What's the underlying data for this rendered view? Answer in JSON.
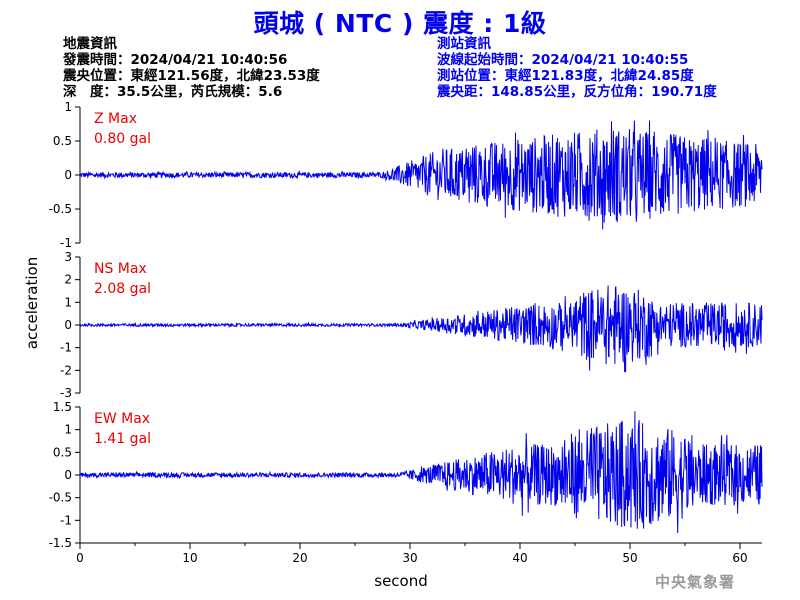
{
  "title": "頭城 ( NTC ) 震度 : 1級",
  "earthquake_info": {
    "header": "地震資訊",
    "origin_time": "發震時間：2024/04/21 10:40:56",
    "epicenter": "震央位置：東經121.56度，北緯23.53度",
    "depth_magnitude": "深　度：35.5公里，芮氏規模：5.6"
  },
  "station_info": {
    "header": "測站資訊",
    "wave_start": "波線起始時間：2024/04/21 10:40:55",
    "station_location": "測站位置：東經121.83度，北緯24.85度",
    "distance_azimuth": "震央距：148.85公里，反方位角：190.71度"
  },
  "agency": "中央氣象署",
  "colors": {
    "trace": "#0000ee",
    "max_label": "#ee0000",
    "title": "#0000ee"
  },
  "chart_data": {
    "type": "line",
    "xlabel": "second",
    "ylabel": "acceleration",
    "xlim": [
      0,
      62
    ],
    "xticks": [
      0,
      10,
      20,
      30,
      40,
      50,
      60
    ],
    "grid": false,
    "series": [
      {
        "name": "Z Max",
        "max_label": "0.80 gal",
        "ylim": [
          -1,
          1
        ],
        "yticks": [
          -1,
          -0.5,
          0,
          0.5,
          1
        ],
        "peak": 0.8,
        "noise": 0.04,
        "onset_s": 27.5,
        "ramp_end_s": 33,
        "strong_s": [
          35,
          62
        ]
      },
      {
        "name": "NS Max",
        "max_label": "2.08 gal",
        "ylim": [
          -3,
          3
        ],
        "yticks": [
          -3,
          -2,
          -1,
          0,
          1,
          2,
          3
        ],
        "peak": 2.08,
        "noise": 0.06,
        "onset_s": 29,
        "ramp_end_s": 42,
        "strong_s": [
          45,
          52
        ]
      },
      {
        "name": "EW Max",
        "max_label": "1.41 gal",
        "ylim": [
          -1.5,
          1.5
        ],
        "yticks": [
          -1.5,
          -1,
          -0.5,
          0,
          0.5,
          1,
          1.5
        ],
        "peak": 1.41,
        "noise": 0.05,
        "onset_s": 29,
        "ramp_end_s": 40,
        "strong_s": [
          44,
          56
        ]
      }
    ]
  }
}
